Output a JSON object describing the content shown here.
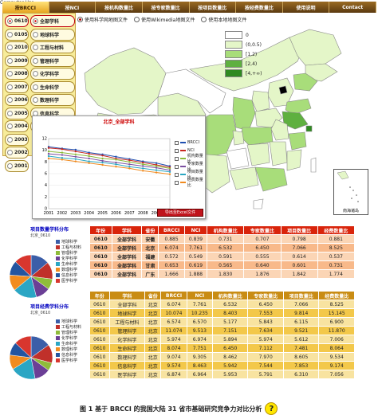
{
  "nav": {
    "tabs": [
      {
        "label": "按BRCCI",
        "active": true
      },
      {
        "label": "按NCI",
        "active": false
      },
      {
        "label": "按机构数量比",
        "active": false
      },
      {
        "label": "按专家数量比",
        "active": false
      },
      {
        "label": "按项目数量比",
        "active": false
      },
      {
        "label": "按经费数量比",
        "active": false
      },
      {
        "label": "使用说明",
        "active": false
      },
      {
        "label": "Contact",
        "active": false
      }
    ]
  },
  "years": [
    "0610",
    "0105",
    "2010",
    "2009",
    "2008",
    "2007",
    "2006",
    "2005",
    "2004",
    "2003",
    "2002",
    "2001"
  ],
  "fields": [
    "全部学科",
    "地球科学",
    "工程与材料",
    "管理科学",
    "化学科学",
    "生命科学",
    "数理科学",
    "信息科学",
    "医学科学"
  ],
  "map_options": [
    {
      "label": "使用科学网地图文件",
      "selected": true
    },
    {
      "label": "使用Wikimedia地图文件",
      "selected": false
    },
    {
      "label": "使用本地地图文件",
      "selected": false
    }
  ],
  "legend": [
    "0",
    "(0,0.5)",
    "[1,2)",
    "[2,4)",
    "[4,+∞)"
  ],
  "colors": {
    "c0": "#ffffff",
    "c1": "#e4f6c8",
    "c2": "#a8dd7a",
    "c3": "#5fb040",
    "c4": "#2f8a21",
    "beijing": "#000000"
  },
  "inset_label": "南海诸岛",
  "popup": {
    "title": "北京_全部学科",
    "export_label": "导出至Excel文件",
    "legend": [
      {
        "name": "BRCCI",
        "color": "#1f4fb0"
      },
      {
        "name": "NCI",
        "color": "#c8271f"
      },
      {
        "name": "机构数量比",
        "color": "#8ab93a"
      },
      {
        "name": "专家数量比",
        "color": "#7b4fa0"
      },
      {
        "name": "项目数量比",
        "color": "#2aa7c2"
      },
      {
        "name": "经费数量比",
        "color": "#f08a1f"
      }
    ]
  },
  "chart_data": {
    "type": "line",
    "categories": [
      "2001",
      "2002",
      "2003",
      "2004",
      "2005",
      "2006",
      "2007",
      "2008",
      "2009",
      "2010"
    ],
    "ylim": [
      0,
      12
    ],
    "yticks": [
      "0",
      "2",
      "4",
      "6",
      "8",
      "10",
      "12"
    ],
    "series": [
      {
        "name": "BRCCI",
        "values": [
          10.6,
          10.3,
          10.1,
          9.6,
          9.3,
          8.9,
          8.5,
          8.1,
          7.8,
          7.3
        ]
      },
      {
        "name": "NCI",
        "values": [
          10.4,
          10.2,
          9.8,
          9.4,
          9.1,
          8.6,
          8.3,
          7.9,
          7.5,
          7.1
        ]
      },
      {
        "name": "机构数量比",
        "values": [
          9.8,
          9.6,
          9.3,
          9.0,
          8.6,
          8.4,
          8.0,
          7.6,
          7.3,
          6.9
        ]
      },
      {
        "name": "专家数量比",
        "values": [
          9.4,
          9.2,
          8.9,
          8.6,
          8.2,
          7.9,
          7.6,
          7.3,
          7.0,
          6.6
        ]
      },
      {
        "name": "项目数量比",
        "values": [
          9.0,
          8.7,
          8.5,
          8.1,
          7.9,
          7.6,
          7.2,
          6.9,
          6.6,
          6.3
        ]
      },
      {
        "name": "经费数量比",
        "values": [
          8.6,
          8.4,
          8.1,
          7.8,
          7.5,
          7.2,
          6.9,
          6.5,
          6.2,
          5.9
        ]
      }
    ]
  },
  "section1": {
    "title": "项目数量学科分布",
    "unit": "北京_0610",
    "pie_legend": [
      {
        "name": "地球科学",
        "color": "#3b5ea8"
      },
      {
        "name": "工程与材料",
        "color": "#c0302a"
      },
      {
        "name": "管理科学",
        "color": "#8fbc3a"
      },
      {
        "name": "化学科学",
        "color": "#6b3f96"
      },
      {
        "name": "生命科学",
        "color": "#2ba6c4"
      },
      {
        "name": "数理科学",
        "color": "#f28c1f"
      },
      {
        "name": "信息科学",
        "color": "#2455a0"
      },
      {
        "name": "医学科学",
        "color": "#d8362e"
      }
    ],
    "pie": [
      14,
      13,
      8,
      11,
      18,
      12,
      11,
      13
    ]
  },
  "section2": {
    "title": "项目经费学科分布",
    "unit": "北京_0610",
    "pie_legend": [
      {
        "name": "地球科学",
        "color": "#3b5ea8"
      },
      {
        "name": "工程与材料",
        "color": "#c0302a"
      },
      {
        "name": "管理科学",
        "color": "#8fbc3a"
      },
      {
        "name": "化学科学",
        "color": "#6b3f96"
      },
      {
        "name": "生命科学",
        "color": "#2ba6c4"
      },
      {
        "name": "数理科学",
        "color": "#f28c1f"
      },
      {
        "name": "信息科学",
        "color": "#2455a0"
      },
      {
        "name": "医学科学",
        "color": "#d8362e"
      }
    ],
    "pie": [
      15,
      14,
      6,
      12,
      19,
      11,
      10,
      13
    ]
  },
  "table1": {
    "headers": [
      "年份",
      "学科",
      "省份",
      "BRCCI",
      "NCI",
      "机构数量比",
      "专家数量比",
      "项目数量比",
      "经费数量比"
    ],
    "rows": [
      [
        "0610",
        "全部学科",
        "安徽",
        "0.885",
        "0.839",
        "0.731",
        "0.707",
        "0.798",
        "0.881"
      ],
      [
        "0610",
        "全部学科",
        "北京",
        "6.074",
        "7.761",
        "6.532",
        "6.450",
        "7.066",
        "8.525"
      ],
      [
        "0610",
        "全部学科",
        "福建",
        "0.572",
        "0.549",
        "0.591",
        "0.555",
        "0.614",
        "0.537"
      ],
      [
        "0610",
        "全部学科",
        "甘肃",
        "0.653",
        "0.619",
        "0.565",
        "0.640",
        "0.601",
        "0.731"
      ],
      [
        "0610",
        "全部学科",
        "广东",
        "1.666",
        "1.888",
        "1.830",
        "1.876",
        "1.842",
        "1.774"
      ]
    ]
  },
  "table2": {
    "headers": [
      "年份",
      "学科",
      "省份",
      "BRCCI",
      "NCI",
      "机构数量比",
      "专家数量比",
      "项目数量比",
      "经费数量比"
    ],
    "rows": [
      [
        "0610",
        "全部学科",
        "北京",
        "6.074",
        "7.761",
        "6.532",
        "6.450",
        "7.066",
        "8.525"
      ],
      [
        "0610",
        "地球科学",
        "北京",
        "10.074",
        "10.235",
        "8.403",
        "7.553",
        "9.814",
        "15.145"
      ],
      [
        "0610",
        "工程与材料",
        "北京",
        "6.574",
        "6.570",
        "5.177",
        "5.843",
        "6.115",
        "6.900"
      ],
      [
        "0610",
        "管理科学",
        "北京",
        "11.074",
        "9.513",
        "7.151",
        "7.634",
        "9.521",
        "11.870"
      ],
      [
        "0610",
        "化学科学",
        "北京",
        "5.974",
        "6.974",
        "5.894",
        "5.974",
        "5.612",
        "7.006"
      ],
      [
        "0610",
        "生命科学",
        "北京",
        "8.074",
        "7.751",
        "6.450",
        "7.112",
        "7.481",
        "8.064"
      ],
      [
        "0610",
        "数理科学",
        "北京",
        "9.074",
        "9.305",
        "8.462",
        "7.970",
        "8.605",
        "9.534"
      ],
      [
        "0610",
        "信息科学",
        "北京",
        "9.574",
        "8.463",
        "5.942",
        "7.544",
        "7.853",
        "9.174"
      ],
      [
        "0610",
        "医学科学",
        "北京",
        "6.874",
        "6.964",
        "5.953",
        "5.791",
        "6.310",
        "7.056"
      ]
    ]
  },
  "caption": "图 1    基于 BRCCI 的我国大陆 31 省市基础研究竞争力对比分析"
}
